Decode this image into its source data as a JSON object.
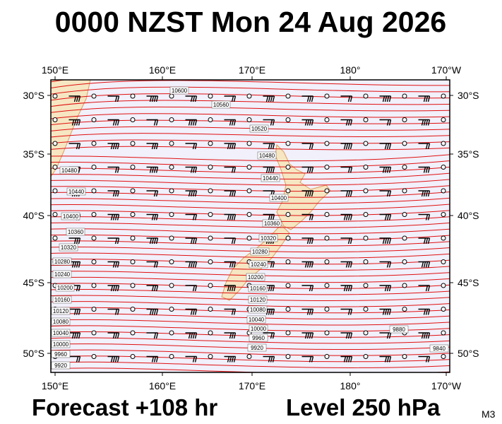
{
  "header": {
    "title": "0000 NZST Mon 24 Aug 2026"
  },
  "map": {
    "longitudes": [
      "150°E",
      "160°E",
      "170°E",
      "180°",
      "170°W"
    ],
    "latitudes": [
      "30°S",
      "35°S",
      "40°S",
      "45°S",
      "50°S"
    ],
    "contour_labels": [
      "10600",
      "10560",
      "10520",
      "10480",
      "10440",
      "10400",
      "10360",
      "10320",
      "10280",
      "10240",
      "10200",
      "10160",
      "10120",
      "10080",
      "10040",
      "10000",
      "9960",
      "9920",
      "10480",
      "10440",
      "10400",
      "10360",
      "10320",
      "10280",
      "10240",
      "10200",
      "10160",
      "10120",
      "10080",
      "10040",
      "10000",
      "9960",
      "9920",
      "9880",
      "9840"
    ]
  },
  "footer": {
    "forecast": "Forecast +108 hr",
    "level": "Level 250 hPa",
    "code": "M3"
  }
}
